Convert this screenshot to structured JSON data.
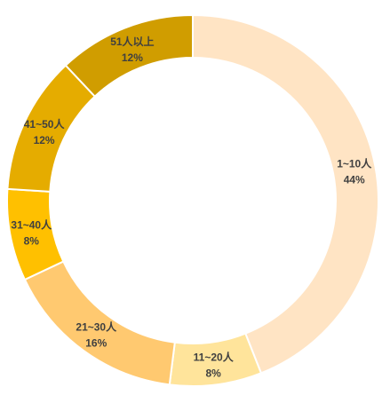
{
  "chart_data": {
    "type": "pie",
    "subtype": "donut",
    "start_angle_deg": 0,
    "direction": "clockwise",
    "slices": [
      {
        "label": "1~10人",
        "value": 44,
        "value_label": "44%",
        "color": "#FFE4C4"
      },
      {
        "label": "11~20人",
        "value": 8,
        "value_label": "8%",
        "color": "#FFE49B"
      },
      {
        "label": "21~30人",
        "value": 16,
        "value_label": "16%",
        "color": "#FFC970"
      },
      {
        "label": "31~40人",
        "value": 8,
        "value_label": "8%",
        "color": "#FFC000"
      },
      {
        "label": "41~50人",
        "value": 12,
        "value_label": "12%",
        "color": "#E5AC00"
      },
      {
        "label": "51人以上",
        "value": 12,
        "value_label": "12%",
        "color": "#D09D00"
      }
    ],
    "legend": "none",
    "title": ""
  }
}
